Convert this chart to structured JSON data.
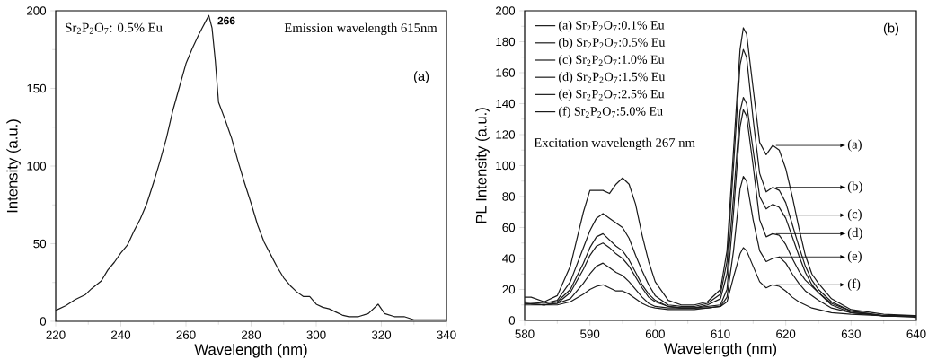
{
  "chart_data": [
    {
      "type": "line",
      "xlabel": "Wavelength (nm)",
      "ylabel": "Intensity (a.u.)",
      "xlim": [
        220,
        340
      ],
      "ylim": [
        0,
        200
      ],
      "xticks": [
        220,
        240,
        260,
        280,
        300,
        320,
        340
      ],
      "yticks": [
        0,
        50,
        100,
        150,
        200
      ],
      "annotations": [
        "Sr$_{2}$P$_{2}$O$_{7}$: 0.5% Eu",
        {
          "text": "266",
          "x": 267,
          "y": 197
        },
        "Emission wavelength 615nm",
        "(a)"
      ],
      "series": [
        {
          "color": "#1a1a1a",
          "x": [
            220,
            223,
            226,
            229,
            231,
            234,
            236,
            238,
            240,
            242,
            244,
            246,
            248,
            250,
            252,
            254,
            256,
            258,
            260,
            262,
            264,
            265,
            266,
            267,
            268,
            269,
            270,
            272,
            274,
            276,
            278,
            280,
            282,
            284,
            286,
            288,
            290,
            292,
            294,
            296,
            298,
            300,
            302,
            304,
            306,
            308,
            310,
            313,
            316,
            319,
            321,
            324,
            327,
            330,
            335,
            340
          ],
          "values": [
            7,
            10,
            14,
            17,
            21,
            26,
            33,
            38,
            44,
            49,
            58,
            66,
            76,
            89,
            103,
            118,
            136,
            151,
            166,
            176,
            185,
            189,
            193,
            197,
            189,
            168,
            141,
            130,
            118,
            103,
            89,
            76,
            62,
            51,
            43,
            35,
            28,
            23,
            19,
            16,
            16,
            11,
            9,
            8,
            6,
            4,
            3,
            3,
            5,
            11,
            5,
            3,
            3,
            1,
            1,
            1
          ]
        }
      ]
    },
    {
      "type": "line",
      "xlabel": "Wavelength (nm)",
      "ylabel": "PL Intensity (a.u.)",
      "xlim": [
        580,
        640
      ],
      "ylim": [
        0,
        200
      ],
      "xticks": [
        580,
        590,
        600,
        610,
        620,
        630,
        640
      ],
      "yticks": [
        0,
        20,
        40,
        60,
        80,
        100,
        120,
        140,
        160,
        180,
        200
      ],
      "legend": "top left",
      "annotations": [
        "(b)",
        "Excitation wavelength 267 nm",
        {
          "text": "(a)",
          "x": 618.5,
          "y": 113
        },
        {
          "text": "(b)",
          "x": 618.5,
          "y": 86
        },
        {
          "text": "(c)",
          "x": 619.5,
          "y": 68
        },
        {
          "text": "(d)",
          "x": 618.5,
          "y": 56
        },
        {
          "text": "(e)",
          "x": 619,
          "y": 41
        },
        {
          "text": "(f)",
          "x": 618.5,
          "y": 23
        }
      ],
      "series": [
        {
          "name": "(a) Sr$_{2}$P$_{2}$O$_{7}$:0.1% Eu",
          "color": "#1a1a1a",
          "x": [
            580,
            581,
            583,
            585,
            587,
            589,
            590,
            592,
            593,
            594,
            595,
            596,
            597,
            598,
            599,
            600,
            602,
            604,
            606,
            608,
            610,
            611,
            612,
            613,
            613.5,
            614,
            615,
            616,
            617,
            618,
            619,
            620,
            621,
            622,
            623,
            624,
            625,
            627,
            630,
            635,
            640
          ],
          "values": [
            15,
            15,
            12,
            16,
            35,
            70,
            84,
            84,
            82,
            88,
            92,
            88,
            75,
            55,
            38,
            25,
            13,
            10,
            10,
            12,
            20,
            45,
            110,
            175,
            189,
            185,
            150,
            115,
            107,
            113,
            110,
            98,
            80,
            60,
            42,
            30,
            24,
            14,
            7,
            4,
            3
          ]
        },
        {
          "name": "(b) Sr$_{2}$P$_{2}$O$_{7}$:0.5% Eu",
          "color": "#1a1a1a",
          "x": [
            580,
            583,
            585,
            587,
            589,
            590,
            591,
            592,
            593,
            594,
            595,
            596,
            597,
            598,
            599,
            600,
            602,
            604,
            606,
            608,
            610,
            611,
            612,
            613,
            613.5,
            614,
            615,
            616,
            617,
            618,
            619,
            620,
            621,
            622,
            623,
            624,
            625,
            627,
            630,
            635,
            640
          ],
          "values": [
            12,
            11,
            13,
            25,
            47,
            58,
            66,
            69,
            66,
            63,
            60,
            53,
            42,
            32,
            23,
            16,
            10,
            9,
            9,
            11,
            17,
            38,
            100,
            165,
            175,
            170,
            130,
            95,
            83,
            86,
            84,
            76,
            62,
            48,
            35,
            26,
            20,
            12,
            6,
            3,
            3
          ]
        },
        {
          "name": "(c) Sr$_{2}$P$_{2}$O$_{7}$:1.0% Eu",
          "color": "#1a1a1a",
          "x": [
            580,
            583,
            585,
            587,
            589,
            590,
            591,
            592,
            593,
            594,
            595,
            596,
            597,
            598,
            599,
            600,
            602,
            604,
            606,
            608,
            610,
            611,
            612,
            613,
            613.5,
            614,
            615,
            616,
            617,
            618,
            619,
            620,
            621,
            622,
            623,
            624,
            625,
            627,
            630,
            635,
            640
          ],
          "values": [
            11,
            10,
            12,
            20,
            37,
            47,
            54,
            56,
            52,
            48,
            45,
            39,
            31,
            23,
            17,
            13,
            9,
            8,
            8,
            10,
            14,
            30,
            80,
            135,
            144,
            140,
            110,
            80,
            72,
            75,
            73,
            66,
            54,
            42,
            31,
            23,
            18,
            11,
            6,
            3,
            3
          ]
        },
        {
          "name": "(d) Sr$_{2}$P$_{2}$O$_{7}$:1.5% Eu",
          "color": "#1a1a1a",
          "x": [
            580,
            583,
            585,
            587,
            589,
            590,
            591,
            592,
            593,
            594,
            595,
            596,
            597,
            598,
            599,
            600,
            602,
            604,
            606,
            608,
            610,
            611,
            612,
            613,
            613.5,
            614,
            615,
            616,
            617,
            618,
            619,
            620,
            621,
            622,
            623,
            624,
            625,
            627,
            630,
            635,
            640
          ],
          "values": [
            11,
            10,
            11,
            18,
            33,
            42,
            48,
            50,
            47,
            43,
            40,
            35,
            28,
            21,
            15,
            12,
            9,
            8,
            8,
            9,
            10,
            20,
            70,
            125,
            136,
            132,
            100,
            65,
            54,
            56,
            55,
            49,
            40,
            32,
            26,
            22,
            18,
            10,
            5,
            3,
            3
          ]
        },
        {
          "name": "(e) Sr$_{2}$P$_{2}$O$_{7}$:2.5% Eu",
          "color": "#1a1a1a",
          "x": [
            580,
            583,
            585,
            587,
            589,
            590,
            591,
            592,
            593,
            594,
            595,
            596,
            597,
            598,
            599,
            600,
            602,
            604,
            606,
            608,
            610,
            611,
            612,
            613,
            613.5,
            614,
            615,
            616,
            617,
            618,
            619,
            620,
            621,
            622,
            623,
            624,
            625,
            627,
            630,
            635,
            640
          ],
          "values": [
            11,
            10,
            11,
            14,
            24,
            30,
            35,
            37,
            34,
            31,
            29,
            25,
            20,
            15,
            11,
            9,
            8,
            8,
            8,
            8,
            9,
            15,
            45,
            85,
            93,
            90,
            65,
            45,
            38,
            40,
            41,
            37,
            30,
            24,
            19,
            16,
            13,
            8,
            5,
            3,
            3
          ]
        },
        {
          "name": "(f) Sr$_{2}$P$_{2}$O$_{7}$:5.0% Eu",
          "color": "#1a1a1a",
          "x": [
            580,
            583,
            585,
            587,
            589,
            590,
            591,
            592,
            593,
            594,
            595,
            596,
            597,
            598,
            599,
            600,
            602,
            604,
            606,
            608,
            610,
            611,
            612,
            613,
            613.5,
            614,
            615,
            616,
            617,
            618,
            619,
            620,
            621,
            622,
            623,
            624,
            625,
            627,
            630,
            635,
            640
          ],
          "values": [
            10,
            10,
            10,
            12,
            17,
            20,
            22,
            23,
            21,
            19,
            19,
            17,
            14,
            11,
            9,
            8,
            7,
            7,
            7,
            8,
            9,
            12,
            28,
            43,
            47,
            45,
            35,
            25,
            21,
            23,
            22,
            19,
            15,
            12,
            10,
            8,
            7,
            5,
            4,
            3,
            2
          ]
        }
      ]
    }
  ]
}
